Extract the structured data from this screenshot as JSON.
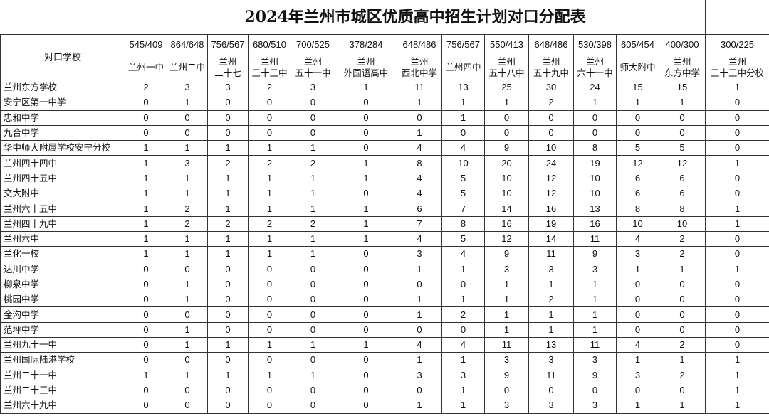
{
  "title": "2024年兰州市城区优质高中招生计划对口分配表",
  "corner_label": "对口学校",
  "columns": [
    {
      "ratio": "545/409",
      "line1": "兰州一中",
      "line2": ""
    },
    {
      "ratio": "864/648",
      "line1": "兰州二中",
      "line2": ""
    },
    {
      "ratio": "756/567",
      "line1": "兰州",
      "line2": "二十七"
    },
    {
      "ratio": "680/510",
      "line1": "兰州",
      "line2": "三十三中"
    },
    {
      "ratio": "700/525",
      "line1": "兰州",
      "line2": "五十一中"
    },
    {
      "ratio": "378/284",
      "line1": "兰州",
      "line2": "外国语高中"
    },
    {
      "ratio": "648/486",
      "line1": "兰州",
      "line2": "西北中学"
    },
    {
      "ratio": "756/567",
      "line1": "兰州四中",
      "line2": ""
    },
    {
      "ratio": "550/413",
      "line1": "兰州",
      "line2": "五十八中"
    },
    {
      "ratio": "648/486",
      "line1": "兰州",
      "line2": "五十九中"
    },
    {
      "ratio": "530/398",
      "line1": "兰州",
      "line2": "六十一中"
    },
    {
      "ratio": "605/454",
      "line1": "师大附中",
      "line2": ""
    },
    {
      "ratio": "400/300",
      "line1": "兰州",
      "line2": "东方中学"
    },
    {
      "ratio": "300/225",
      "line1": "兰州",
      "line2": "三十三中分校"
    }
  ],
  "rows": [
    {
      "school": "兰州东方学校",
      "values": [
        2,
        3,
        3,
        2,
        3,
        1,
        11,
        13,
        25,
        30,
        24,
        15,
        15,
        1
      ]
    },
    {
      "school": "安宁区第一中学",
      "values": [
        0,
        1,
        0,
        0,
        0,
        0,
        1,
        1,
        1,
        2,
        1,
        1,
        1,
        0
      ]
    },
    {
      "school": "忠和中学",
      "values": [
        0,
        0,
        0,
        0,
        0,
        0,
        0,
        1,
        0,
        0,
        0,
        0,
        0,
        0
      ]
    },
    {
      "school": "九合中学",
      "values": [
        0,
        0,
        0,
        0,
        0,
        0,
        1,
        0,
        0,
        0,
        0,
        0,
        0,
        0
      ]
    },
    {
      "school": "华中师大附属学校安宁分校",
      "values": [
        1,
        1,
        1,
        1,
        1,
        0,
        4,
        4,
        9,
        10,
        8,
        5,
        5,
        0
      ]
    },
    {
      "school": "兰州四十四中",
      "values": [
        1,
        3,
        2,
        2,
        2,
        1,
        8,
        10,
        20,
        24,
        19,
        12,
        12,
        1
      ]
    },
    {
      "school": "兰州四十五中",
      "values": [
        1,
        1,
        1,
        1,
        1,
        1,
        4,
        5,
        10,
        12,
        10,
        6,
        6,
        0
      ]
    },
    {
      "school": "交大附中",
      "values": [
        1,
        1,
        1,
        1,
        1,
        0,
        4,
        5,
        10,
        12,
        10,
        6,
        6,
        0
      ]
    },
    {
      "school": "兰州六十五中",
      "values": [
        1,
        2,
        1,
        1,
        1,
        1,
        6,
        7,
        14,
        16,
        13,
        8,
        8,
        1
      ]
    },
    {
      "school": "兰州四十九中",
      "values": [
        1,
        2,
        2,
        2,
        2,
        1,
        7,
        8,
        16,
        19,
        16,
        10,
        10,
        1
      ]
    },
    {
      "school": "兰州六中",
      "values": [
        1,
        1,
        1,
        1,
        1,
        1,
        4,
        5,
        12,
        14,
        11,
        4,
        2,
        0
      ]
    },
    {
      "school": "兰化一校",
      "values": [
        1,
        1,
        1,
        1,
        1,
        0,
        3,
        4,
        9,
        11,
        9,
        3,
        2,
        0
      ]
    },
    {
      "school": "达川中学",
      "values": [
        0,
        0,
        0,
        0,
        0,
        0,
        1,
        1,
        3,
        3,
        3,
        1,
        1,
        1
      ]
    },
    {
      "school": "柳泉中学",
      "values": [
        0,
        1,
        0,
        0,
        0,
        0,
        0,
        0,
        1,
        1,
        1,
        0,
        0,
        0
      ]
    },
    {
      "school": "桃园中学",
      "values": [
        0,
        1,
        0,
        0,
        0,
        0,
        1,
        1,
        1,
        2,
        1,
        0,
        0,
        0
      ]
    },
    {
      "school": "金沟中学",
      "values": [
        0,
        0,
        0,
        0,
        0,
        0,
        1,
        2,
        1,
        1,
        1,
        0,
        0,
        0
      ]
    },
    {
      "school": "范坪中学",
      "values": [
        0,
        1,
        0,
        0,
        0,
        0,
        0,
        0,
        1,
        1,
        1,
        0,
        0,
        0
      ]
    },
    {
      "school": "兰州九十一中",
      "values": [
        0,
        1,
        1,
        1,
        1,
        1,
        4,
        4,
        11,
        13,
        11,
        4,
        2,
        0
      ]
    },
    {
      "school": "兰州国际陆港学校",
      "values": [
        0,
        0,
        0,
        0,
        0,
        0,
        1,
        1,
        3,
        3,
        3,
        1,
        1,
        1
      ]
    },
    {
      "school": "兰州二十一中",
      "values": [
        1,
        1,
        1,
        1,
        1,
        0,
        3,
        3,
        9,
        11,
        9,
        3,
        2,
        1
      ]
    },
    {
      "school": "兰州二十三中",
      "values": [
        0,
        0,
        0,
        0,
        0,
        0,
        0,
        1,
        0,
        0,
        0,
        0,
        0,
        1
      ]
    },
    {
      "school": "兰州六十九中",
      "values": [
        0,
        0,
        0,
        0,
        0,
        0,
        1,
        1,
        3,
        3,
        3,
        1,
        1,
        1
      ]
    }
  ]
}
